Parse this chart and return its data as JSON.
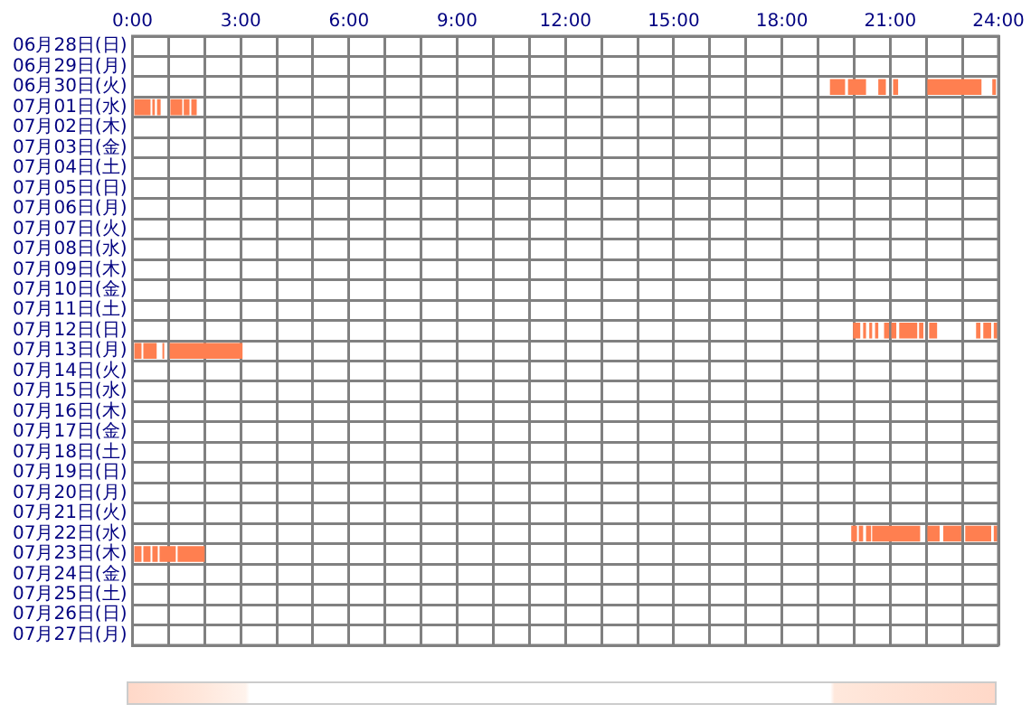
{
  "chart_data": {
    "type": "bar",
    "orientation": "horizontal",
    "legend": false,
    "grid": true,
    "categories": [
      "06月28日(日)",
      "06月29日(月)",
      "06月30日(火)",
      "07月01日(水)",
      "07月02日(木)",
      "07月03日(金)",
      "07月04日(土)",
      "07月05日(日)",
      "07月06日(月)",
      "07月07日(火)",
      "07月08日(水)",
      "07月09日(木)",
      "07月10日(金)",
      "07月11日(土)",
      "07月12日(日)",
      "07月13日(月)",
      "07月14日(火)",
      "07月15日(水)",
      "07月16日(木)",
      "07月17日(金)",
      "07月18日(土)",
      "07月19日(日)",
      "07月20日(月)",
      "07月21日(火)",
      "07月22日(水)",
      "07月23日(木)",
      "07月24日(金)",
      "07月25日(土)",
      "07月26日(日)",
      "07月27日(月)"
    ],
    "xlim": [
      0,
      24
    ],
    "xticks": [
      {
        "value": 0,
        "label": "0:00"
      },
      {
        "value": 1,
        "label": null
      },
      {
        "value": 2,
        "label": null
      },
      {
        "value": 3,
        "label": "3:00"
      },
      {
        "value": 4,
        "label": null
      },
      {
        "value": 5,
        "label": null
      },
      {
        "value": 6,
        "label": "6:00"
      },
      {
        "value": 7,
        "label": null
      },
      {
        "value": 8,
        "label": null
      },
      {
        "value": 9,
        "label": "9:00"
      },
      {
        "value": 10,
        "label": null
      },
      {
        "value": 11,
        "label": null
      },
      {
        "value": 12,
        "label": "12:00"
      },
      {
        "value": 13,
        "label": null
      },
      {
        "value": 14,
        "label": null
      },
      {
        "value": 15,
        "label": "15:00"
      },
      {
        "value": 16,
        "label": null
      },
      {
        "value": 17,
        "label": null
      },
      {
        "value": 18,
        "label": "18:00"
      },
      {
        "value": 19,
        "label": null
      },
      {
        "value": 20,
        "label": null
      },
      {
        "value": 21,
        "label": "21:00"
      },
      {
        "value": 22,
        "label": null
      },
      {
        "value": 23,
        "label": null
      },
      {
        "value": 24,
        "label": "24:00"
      }
    ],
    "series": [
      {
        "color": "#ff7f50",
        "values": [
          null,
          null,
          0.42,
          0.45,
          null,
          null,
          null,
          null,
          null,
          null,
          null,
          null,
          null,
          null,
          0.2,
          0.2,
          null,
          null,
          null,
          null,
          null,
          null,
          null,
          null,
          0.16,
          0.2,
          null,
          null,
          null,
          null
        ],
        "base": [
          null,
          null,
          19.33,
          0.05,
          null,
          null,
          null,
          null,
          null,
          null,
          null,
          null,
          null,
          null,
          19.97,
          0.05,
          null,
          null,
          null,
          null,
          null,
          null,
          null,
          null,
          19.92,
          0.05,
          null,
          null,
          null,
          null
        ]
      },
      {
        "color": "#ff7f50",
        "values": [
          null,
          null,
          0.5,
          0.07,
          null,
          null,
          null,
          null,
          null,
          null,
          null,
          null,
          null,
          null,
          0.08,
          0.37,
          null,
          null,
          null,
          null,
          null,
          null,
          null,
          null,
          0.12,
          0.2,
          null,
          null,
          null,
          null
        ],
        "base": [
          null,
          null,
          19.83,
          0.55,
          null,
          null,
          null,
          null,
          null,
          null,
          null,
          null,
          null,
          null,
          20.25,
          0.3,
          null,
          null,
          null,
          null,
          null,
          null,
          null,
          null,
          20.13,
          0.3,
          null,
          null,
          null,
          null
        ]
      },
      {
        "color": "#ff7f50",
        "values": [
          null,
          null,
          0.21,
          0.1,
          null,
          null,
          null,
          null,
          null,
          null,
          null,
          null,
          null,
          null,
          0.08,
          0.05,
          null,
          null,
          null,
          null,
          null,
          null,
          null,
          null,
          0.14,
          0.15,
          null,
          null,
          null,
          null
        ],
        "base": [
          null,
          null,
          20.67,
          0.68,
          null,
          null,
          null,
          null,
          null,
          null,
          null,
          null,
          null,
          null,
          20.42,
          0.83,
          null,
          null,
          null,
          null,
          null,
          null,
          null,
          null,
          20.33,
          0.55,
          null,
          null,
          null,
          null
        ]
      },
      {
        "color": "#ff7f50",
        "values": [
          null,
          null,
          0.14,
          0.33,
          null,
          null,
          null,
          null,
          null,
          null,
          null,
          null,
          null,
          null,
          0.09,
          2.02,
          null,
          null,
          null,
          null,
          null,
          null,
          null,
          null,
          1.33,
          0.45,
          null,
          null,
          null,
          null
        ],
        "base": [
          null,
          null,
          21.08,
          1.05,
          null,
          null,
          null,
          null,
          null,
          null,
          null,
          null,
          null,
          null,
          20.58,
          1.03,
          null,
          null,
          null,
          null,
          null,
          null,
          null,
          null,
          20.5,
          0.75,
          null,
          null,
          null,
          null
        ]
      },
      {
        "color": "#ff7f50",
        "values": [
          null,
          null,
          1.5,
          0.16,
          null,
          null,
          null,
          null,
          null,
          null,
          null,
          null,
          null,
          null,
          0.14,
          null,
          null,
          null,
          null,
          null,
          null,
          null,
          null,
          null,
          0.34,
          0.75,
          null,
          null,
          null,
          null
        ],
        "base": [
          null,
          null,
          22.03,
          1.42,
          null,
          null,
          null,
          null,
          null,
          null,
          null,
          null,
          null,
          null,
          20.83,
          null,
          null,
          null,
          null,
          null,
          null,
          null,
          null,
          null,
          22.03,
          1.25,
          null,
          null,
          null,
          null
        ]
      },
      {
        "color": "#ff7f50",
        "values": [
          null,
          null,
          0.1,
          0.15,
          null,
          null,
          null,
          null,
          null,
          null,
          null,
          null,
          null,
          null,
          0.14,
          null,
          null,
          null,
          null,
          null,
          null,
          null,
          null,
          null,
          0.5,
          null,
          null,
          null,
          null,
          null
        ],
        "base": [
          null,
          null,
          23.83,
          1.63,
          null,
          null,
          null,
          null,
          null,
          null,
          null,
          null,
          null,
          null,
          21.03,
          null,
          null,
          null,
          null,
          null,
          null,
          null,
          null,
          null,
          22.47,
          null,
          null,
          null,
          null,
          null
        ]
      },
      {
        "color": "#ff7f50",
        "values": [
          null,
          null,
          null,
          null,
          null,
          null,
          null,
          null,
          null,
          null,
          null,
          null,
          null,
          null,
          0.5,
          null,
          null,
          null,
          null,
          null,
          null,
          null,
          null,
          null,
          0.72,
          null,
          null,
          null,
          null,
          null
        ],
        "base": [
          null,
          null,
          null,
          null,
          null,
          null,
          null,
          null,
          null,
          null,
          null,
          null,
          null,
          null,
          21.25,
          null,
          null,
          null,
          null,
          null,
          null,
          null,
          null,
          null,
          23.08,
          null,
          null,
          null,
          null,
          null
        ]
      },
      {
        "color": "#ff7f50",
        "values": [
          null,
          null,
          null,
          null,
          null,
          null,
          null,
          null,
          null,
          null,
          null,
          null,
          null,
          null,
          0.12,
          null,
          null,
          null,
          null,
          null,
          null,
          null,
          null,
          null,
          0.1,
          null,
          null,
          null,
          null,
          null
        ],
        "base": [
          null,
          null,
          null,
          null,
          null,
          null,
          null,
          null,
          null,
          null,
          null,
          null,
          null,
          null,
          21.8,
          null,
          null,
          null,
          null,
          null,
          null,
          null,
          null,
          null,
          23.87,
          null,
          null,
          null,
          null,
          null
        ]
      },
      {
        "color": "#ff7f50",
        "values": [
          null,
          null,
          null,
          null,
          null,
          null,
          null,
          null,
          null,
          null,
          null,
          null,
          null,
          null,
          0.22,
          null,
          null,
          null,
          null,
          null,
          null,
          null,
          null,
          null,
          null,
          null,
          null,
          null,
          null,
          null
        ],
        "base": [
          null,
          null,
          null,
          null,
          null,
          null,
          null,
          null,
          null,
          null,
          null,
          null,
          null,
          null,
          22.08,
          null,
          null,
          null,
          null,
          null,
          null,
          null,
          null,
          null,
          null,
          null,
          null,
          null,
          null,
          null
        ]
      },
      {
        "color": "#ff7f50",
        "values": [
          null,
          null,
          null,
          null,
          null,
          null,
          null,
          null,
          null,
          null,
          null,
          null,
          null,
          null,
          0.12,
          null,
          null,
          null,
          null,
          null,
          null,
          null,
          null,
          null,
          null,
          null,
          null,
          null,
          null,
          null
        ],
        "base": [
          null,
          null,
          null,
          null,
          null,
          null,
          null,
          null,
          null,
          null,
          null,
          null,
          null,
          null,
          23.38,
          null,
          null,
          null,
          null,
          null,
          null,
          null,
          null,
          null,
          null,
          null,
          null,
          null,
          null,
          null
        ]
      },
      {
        "color": "#ff7f50",
        "values": [
          null,
          null,
          null,
          null,
          null,
          null,
          null,
          null,
          null,
          null,
          null,
          null,
          null,
          null,
          0.22,
          null,
          null,
          null,
          null,
          null,
          null,
          null,
          null,
          null,
          null,
          null,
          null,
          null,
          null,
          null
        ],
        "base": [
          null,
          null,
          null,
          null,
          null,
          null,
          null,
          null,
          null,
          null,
          null,
          null,
          null,
          null,
          23.58,
          null,
          null,
          null,
          null,
          null,
          null,
          null,
          null,
          null,
          null,
          null,
          null,
          null,
          null,
          null
        ]
      },
      {
        "color": "#ff7f50",
        "values": [
          null,
          null,
          null,
          null,
          null,
          null,
          null,
          null,
          null,
          null,
          null,
          null,
          null,
          null,
          0.1,
          null,
          null,
          null,
          null,
          null,
          null,
          null,
          null,
          null,
          null,
          null,
          null,
          null,
          null,
          null
        ],
        "base": [
          null,
          null,
          null,
          null,
          null,
          null,
          null,
          null,
          null,
          null,
          null,
          null,
          null,
          null,
          23.87,
          null,
          null,
          null,
          null,
          null,
          null,
          null,
          null,
          null,
          null,
          null,
          null,
          null,
          null,
          null
        ]
      }
    ]
  }
}
